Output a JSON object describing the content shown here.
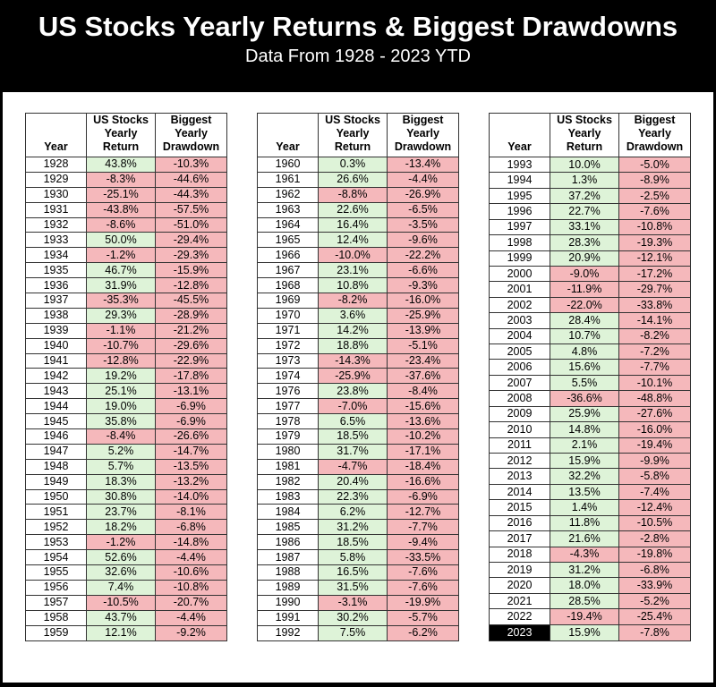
{
  "header": {
    "title": "US Stocks Yearly Returns & Biggest Drawdowns",
    "subtitle": "Data From 1928 - 2023 YTD"
  },
  "chart_data": {
    "type": "table",
    "title": "US Stocks Yearly Returns & Biggest Drawdowns",
    "subtitle": "Data From 1928 - 2023 YTD",
    "columns": [
      "Year",
      "US Stocks Yearly Return",
      "Biggest Yearly Drawdown"
    ],
    "column_header_lines": {
      "year": [
        "Year"
      ],
      "return": [
        "US Stocks",
        "Yearly",
        "Return"
      ],
      "drawdown": [
        "Biggest",
        "Yearly",
        "Drawdown"
      ]
    },
    "highlighted_year": "2023",
    "colors": {
      "positive_bg": "#def3d8",
      "negative_bg": "#f5b8bb",
      "highlight_bg": "#000000",
      "highlight_text": "#ffffff"
    },
    "tables": [
      {
        "rows": [
          [
            "1928",
            "43.8%",
            "-10.3%"
          ],
          [
            "1929",
            "-8.3%",
            "-44.6%"
          ],
          [
            "1930",
            "-25.1%",
            "-44.3%"
          ],
          [
            "1931",
            "-43.8%",
            "-57.5%"
          ],
          [
            "1932",
            "-8.6%",
            "-51.0%"
          ],
          [
            "1933",
            "50.0%",
            "-29.4%"
          ],
          [
            "1934",
            "-1.2%",
            "-29.3%"
          ],
          [
            "1935",
            "46.7%",
            "-15.9%"
          ],
          [
            "1936",
            "31.9%",
            "-12.8%"
          ],
          [
            "1937",
            "-35.3%",
            "-45.5%"
          ],
          [
            "1938",
            "29.3%",
            "-28.9%"
          ],
          [
            "1939",
            "-1.1%",
            "-21.2%"
          ],
          [
            "1940",
            "-10.7%",
            "-29.6%"
          ],
          [
            "1941",
            "-12.8%",
            "-22.9%"
          ],
          [
            "1942",
            "19.2%",
            "-17.8%"
          ],
          [
            "1943",
            "25.1%",
            "-13.1%"
          ],
          [
            "1944",
            "19.0%",
            "-6.9%"
          ],
          [
            "1945",
            "35.8%",
            "-6.9%"
          ],
          [
            "1946",
            "-8.4%",
            "-26.6%"
          ],
          [
            "1947",
            "5.2%",
            "-14.7%"
          ],
          [
            "1948",
            "5.7%",
            "-13.5%"
          ],
          [
            "1949",
            "18.3%",
            "-13.2%"
          ],
          [
            "1950",
            "30.8%",
            "-14.0%"
          ],
          [
            "1951",
            "23.7%",
            "-8.1%"
          ],
          [
            "1952",
            "18.2%",
            "-6.8%"
          ],
          [
            "1953",
            "-1.2%",
            "-14.8%"
          ],
          [
            "1954",
            "52.6%",
            "-4.4%"
          ],
          [
            "1955",
            "32.6%",
            "-10.6%"
          ],
          [
            "1956",
            "7.4%",
            "-10.8%"
          ],
          [
            "1957",
            "-10.5%",
            "-20.7%"
          ],
          [
            "1958",
            "43.7%",
            "-4.4%"
          ],
          [
            "1959",
            "12.1%",
            "-9.2%"
          ]
        ]
      },
      {
        "rows": [
          [
            "1960",
            "0.3%",
            "-13.4%"
          ],
          [
            "1961",
            "26.6%",
            "-4.4%"
          ],
          [
            "1962",
            "-8.8%",
            "-26.9%"
          ],
          [
            "1963",
            "22.6%",
            "-6.5%"
          ],
          [
            "1964",
            "16.4%",
            "-3.5%"
          ],
          [
            "1965",
            "12.4%",
            "-9.6%"
          ],
          [
            "1966",
            "-10.0%",
            "-22.2%"
          ],
          [
            "1967",
            "23.1%",
            "-6.6%"
          ],
          [
            "1968",
            "10.8%",
            "-9.3%"
          ],
          [
            "1969",
            "-8.2%",
            "-16.0%"
          ],
          [
            "1970",
            "3.6%",
            "-25.9%"
          ],
          [
            "1971",
            "14.2%",
            "-13.9%"
          ],
          [
            "1972",
            "18.8%",
            "-5.1%"
          ],
          [
            "1973",
            "-14.3%",
            "-23.4%"
          ],
          [
            "1974",
            "-25.9%",
            "-37.6%"
          ],
          [
            "1976",
            "23.8%",
            "-8.4%"
          ],
          [
            "1977",
            "-7.0%",
            "-15.6%"
          ],
          [
            "1978",
            "6.5%",
            "-13.6%"
          ],
          [
            "1979",
            "18.5%",
            "-10.2%"
          ],
          [
            "1980",
            "31.7%",
            "-17.1%"
          ],
          [
            "1981",
            "-4.7%",
            "-18.4%"
          ],
          [
            "1982",
            "20.4%",
            "-16.6%"
          ],
          [
            "1983",
            "22.3%",
            "-6.9%"
          ],
          [
            "1984",
            "6.2%",
            "-12.7%"
          ],
          [
            "1985",
            "31.2%",
            "-7.7%"
          ],
          [
            "1986",
            "18.5%",
            "-9.4%"
          ],
          [
            "1987",
            "5.8%",
            "-33.5%"
          ],
          [
            "1988",
            "16.5%",
            "-7.6%"
          ],
          [
            "1989",
            "31.5%",
            "-7.6%"
          ],
          [
            "1990",
            "-3.1%",
            "-19.9%"
          ],
          [
            "1991",
            "30.2%",
            "-5.7%"
          ],
          [
            "1992",
            "7.5%",
            "-6.2%"
          ]
        ]
      },
      {
        "rows": [
          [
            "1993",
            "10.0%",
            "-5.0%"
          ],
          [
            "1994",
            "1.3%",
            "-8.9%"
          ],
          [
            "1995",
            "37.2%",
            "-2.5%"
          ],
          [
            "1996",
            "22.7%",
            "-7.6%"
          ],
          [
            "1997",
            "33.1%",
            "-10.8%"
          ],
          [
            "1998",
            "28.3%",
            "-19.3%"
          ],
          [
            "1999",
            "20.9%",
            "-12.1%"
          ],
          [
            "2000",
            "-9.0%",
            "-17.2%"
          ],
          [
            "2001",
            "-11.9%",
            "-29.7%"
          ],
          [
            "2002",
            "-22.0%",
            "-33.8%"
          ],
          [
            "2003",
            "28.4%",
            "-14.1%"
          ],
          [
            "2004",
            "10.7%",
            "-8.2%"
          ],
          [
            "2005",
            "4.8%",
            "-7.2%"
          ],
          [
            "2006",
            "15.6%",
            "-7.7%"
          ],
          [
            "2007",
            "5.5%",
            "-10.1%"
          ],
          [
            "2008",
            "-36.6%",
            "-48.8%"
          ],
          [
            "2009",
            "25.9%",
            "-27.6%"
          ],
          [
            "2010",
            "14.8%",
            "-16.0%"
          ],
          [
            "2011",
            "2.1%",
            "-19.4%"
          ],
          [
            "2012",
            "15.9%",
            "-9.9%"
          ],
          [
            "2013",
            "32.2%",
            "-5.8%"
          ],
          [
            "2014",
            "13.5%",
            "-7.4%"
          ],
          [
            "2015",
            "1.4%",
            "-12.4%"
          ],
          [
            "2016",
            "11.8%",
            "-10.5%"
          ],
          [
            "2017",
            "21.6%",
            "-2.8%"
          ],
          [
            "2018",
            "-4.3%",
            "-19.8%"
          ],
          [
            "2019",
            "31.2%",
            "-6.8%"
          ],
          [
            "2020",
            "18.0%",
            "-33.9%"
          ],
          [
            "2021",
            "28.5%",
            "-5.2%"
          ],
          [
            "2022",
            "-19.4%",
            "-25.4%"
          ],
          [
            "2023",
            "15.9%",
            "-7.8%"
          ]
        ]
      }
    ]
  }
}
